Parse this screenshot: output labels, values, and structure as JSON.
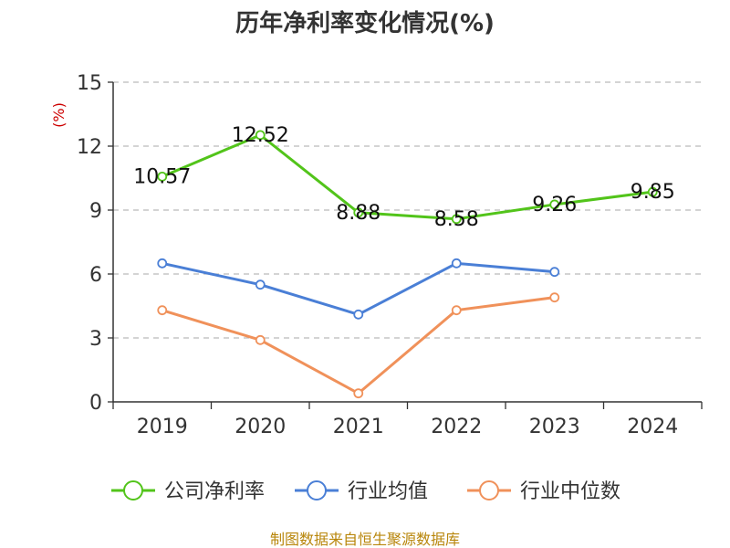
{
  "chart_data": {
    "type": "line",
    "title": "历年净利率变化情况(%)",
    "ylabel": "(%)",
    "categories": [
      "2019",
      "2020",
      "2021",
      "2022",
      "2023",
      "2024"
    ],
    "ylim": [
      0,
      15
    ],
    "yticks": [
      0,
      3,
      6,
      9,
      12,
      15
    ],
    "grid": true,
    "legend_position": "bottom",
    "series": [
      {
        "name": "公司净利率",
        "color": "#52c41a",
        "show_labels": true,
        "values": [
          10.57,
          12.52,
          8.88,
          8.58,
          9.26,
          9.85
        ],
        "labels": [
          "10.57",
          "12.52",
          "8.88",
          "8.58",
          "9.26",
          "9.85"
        ]
      },
      {
        "name": "行业均值",
        "color": "#4a7fd6",
        "show_labels": false,
        "values": [
          6.5,
          5.5,
          4.1,
          6.5,
          6.1,
          null
        ]
      },
      {
        "name": "行业中位数",
        "color": "#f0915a",
        "show_labels": false,
        "values": [
          4.3,
          2.9,
          0.4,
          4.3,
          4.9,
          null
        ]
      }
    ]
  },
  "source": "制图数据来自恒生聚源数据库"
}
